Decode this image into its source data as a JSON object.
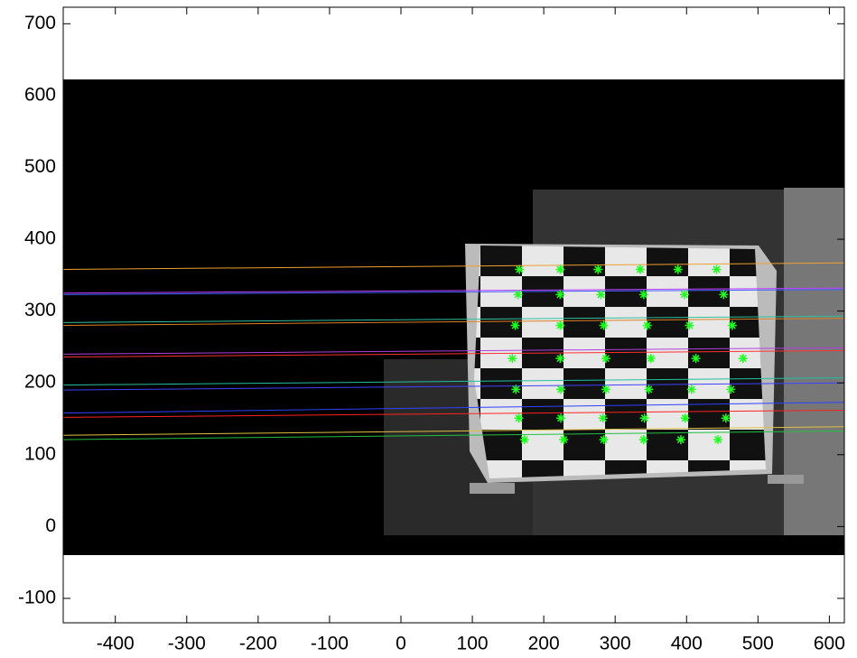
{
  "chart_data": {
    "type": "line",
    "xlim": [
      -473,
      621
    ],
    "ylim": [
      -134,
      723
    ],
    "xticks": [
      -400,
      -300,
      -200,
      -100,
      0,
      100,
      200,
      300,
      400,
      500,
      600
    ],
    "yticks": [
      -100,
      0,
      100,
      200,
      300,
      400,
      500,
      600,
      700
    ],
    "x": [
      -473,
      621
    ],
    "series": [
      {
        "color": "#f0a030",
        "values": [
          358,
          367
        ]
      },
      {
        "color": "#c040ff",
        "values": [
          325,
          332
        ]
      },
      {
        "color": "#4060ff",
        "values": [
          323,
          330
        ]
      },
      {
        "color": "#30c0a0",
        "values": [
          284,
          293
        ]
      },
      {
        "color": "#e08020",
        "values": [
          280,
          290
        ]
      },
      {
        "color": "#b040e0",
        "values": [
          240,
          249
        ]
      },
      {
        "color": "#ff3030",
        "values": [
          236,
          245
        ]
      },
      {
        "color": "#20c0a0",
        "values": [
          197,
          207
        ]
      },
      {
        "color": "#4040ff",
        "values": [
          190,
          200
        ]
      },
      {
        "color": "#3040ff",
        "values": [
          158,
          173
        ]
      },
      {
        "color": "#ff2020",
        "values": [
          152,
          162
        ]
      },
      {
        "color": "#e0c040",
        "values": [
          127,
          139
        ]
      },
      {
        "color": "#20c040",
        "values": [
          121,
          133
        ]
      }
    ],
    "markers": {
      "color": "#20ff20",
      "x": [
        166,
        223,
        276,
        335,
        388,
        442,
        164,
        223,
        280,
        340,
        397,
        452,
        160,
        223,
        284,
        345,
        404,
        464,
        156,
        223,
        287,
        350,
        413,
        479,
        161,
        224,
        287,
        347,
        407,
        462,
        165,
        224,
        283,
        341,
        398,
        455,
        173,
        228,
        284,
        340,
        392,
        444
      ],
      "y": [
        358,
        358,
        358,
        358,
        358,
        358,
        323,
        323,
        323,
        323,
        323,
        323,
        280,
        280,
        280,
        280,
        280,
        280,
        234,
        234,
        234,
        234,
        234,
        234,
        191,
        191,
        191,
        191,
        191,
        191,
        151,
        151,
        151,
        151,
        151,
        151,
        121,
        121,
        121,
        121,
        121,
        121
      ]
    }
  }
}
